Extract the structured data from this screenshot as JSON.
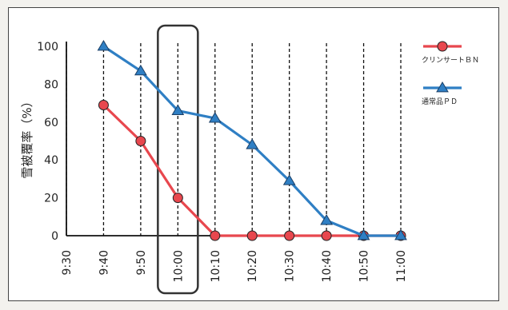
{
  "chart_data": {
    "type": "line",
    "title": "",
    "xlabel": "",
    "ylabel": "雪被覆率（%）",
    "categories": [
      "9:30",
      "9:40",
      "9:50",
      "10:00",
      "10:10",
      "10:20",
      "10:30",
      "10:40",
      "10:50",
      "11:00"
    ],
    "ylim": [
      0,
      100
    ],
    "yticks": [
      "0",
      "20",
      "40",
      "60",
      "80",
      "100"
    ],
    "grid": "vertical dashed lines at each time",
    "legend_position": "right",
    "highlight": {
      "category": "10:00",
      "style": "rounded box"
    },
    "series": [
      {
        "name": "クリンサートＢＮ",
        "color": "#e8474e",
        "marker": "circle",
        "values": [
          null,
          69,
          50,
          20,
          0,
          0,
          0,
          0,
          0,
          0
        ]
      },
      {
        "name": "通常品ＰＤ",
        "color": "#2f7fc4",
        "marker": "triangle",
        "values": [
          null,
          100,
          87,
          66,
          62,
          48,
          29,
          8,
          0,
          0
        ]
      }
    ]
  }
}
